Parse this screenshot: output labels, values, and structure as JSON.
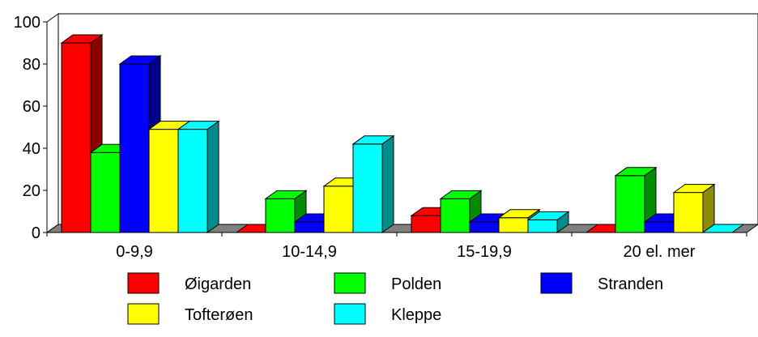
{
  "chart_data": {
    "type": "bar",
    "style": "3d-clustered",
    "categories": [
      "0-9,9",
      "10-14,9",
      "15-19,9",
      "20 el. mer"
    ],
    "series": [
      {
        "name": "Øigarden",
        "color": "#ff0000",
        "values": [
          90,
          0,
          8,
          0
        ]
      },
      {
        "name": "Polden",
        "color": "#00ff00",
        "values": [
          38,
          16,
          16,
          27
        ]
      },
      {
        "name": "Stranden",
        "color": "#0000ff",
        "values": [
          80,
          5,
          5,
          5
        ]
      },
      {
        "name": "Tofterøen",
        "color": "#ffff00",
        "values": [
          49,
          22,
          7,
          19
        ]
      },
      {
        "name": "Kleppe",
        "color": "#00ffff",
        "values": [
          49,
          42,
          6,
          0
        ]
      }
    ],
    "y_ticks": [
      0,
      20,
      40,
      60,
      80,
      100
    ],
    "ylim": [
      0,
      100
    ],
    "legend_position": "bottom",
    "grid": false,
    "title": "",
    "xlabel": "",
    "ylabel": ""
  }
}
